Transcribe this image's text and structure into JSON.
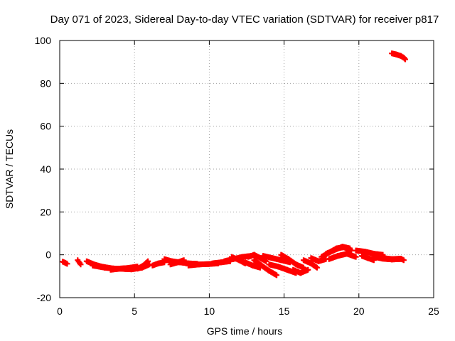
{
  "chart_data": {
    "type": "scatter",
    "title": "Day 071 of 2023, Sidereal Day-to-day VTEC variation (SDTVAR) for receiver p817",
    "xlabel": "GPS time / hours",
    "ylabel": "SDTVAR / TECUs",
    "xlim": [
      0,
      25
    ],
    "ylim": [
      -20,
      100
    ],
    "xticks": [
      0,
      5,
      10,
      15,
      20,
      25
    ],
    "yticks": [
      -20,
      0,
      20,
      40,
      60,
      80,
      100
    ],
    "xtick_labels": [
      "0",
      "5",
      "10",
      "15",
      "20",
      "25"
    ],
    "ytick_labels": [
      "-20",
      "0",
      "20",
      "40",
      "60",
      "80",
      "100"
    ],
    "grid": true,
    "marker": "plus",
    "series": [
      {
        "name": "SDTVAR",
        "color": "#ff0000",
        "tracks": [
          {
            "x": [
              0.2,
              0.5
            ],
            "y": [
              -3.2,
              -4.2
            ]
          },
          {
            "x": [
              1.2,
              1.4
            ],
            "y": [
              -2.5,
              -4.5
            ]
          },
          {
            "x": [
              1.8,
              2.3,
              2.8,
              3.4
            ],
            "y": [
              -3.0,
              -4.5,
              -5.5,
              -6.2
            ]
          },
          {
            "x": [
              2.2,
              3.0,
              3.8,
              4.5,
              5.2
            ],
            "y": [
              -5.0,
              -6.0,
              -6.5,
              -6.2,
              -5.5
            ]
          },
          {
            "x": [
              3.4,
              4.0,
              4.8,
              5.5,
              6.0
            ],
            "y": [
              -7.0,
              -6.5,
              -6.8,
              -6.0,
              -4.5
            ]
          },
          {
            "x": [
              5.2,
              5.6,
              5.9
            ],
            "y": [
              -6.5,
              -5.0,
              -3.0
            ]
          },
          {
            "x": [
              6.2,
              6.6,
              7.0
            ],
            "y": [
              -5.0,
              -4.0,
              -3.5
            ]
          },
          {
            "x": [
              7.0,
              7.5,
              8.0,
              8.6,
              9.2
            ],
            "y": [
              -2.0,
              -3.0,
              -3.5,
              -4.0,
              -4.2
            ]
          },
          {
            "x": [
              7.4,
              7.9,
              8.3
            ],
            "y": [
              -4.5,
              -3.5,
              -2.5
            ]
          },
          {
            "x": [
              8.6,
              9.3,
              10.0,
              10.6
            ],
            "y": [
              -5.0,
              -4.5,
              -4.3,
              -4.0
            ]
          },
          {
            "x": [
              10.2,
              10.8,
              11.4
            ],
            "y": [
              -4.0,
              -3.5,
              -3.0
            ]
          },
          {
            "x": [
              11.0,
              11.6,
              12.2,
              12.8
            ],
            "y": [
              -3.0,
              -2.0,
              -1.0,
              -0.5
            ]
          },
          {
            "x": [
              11.5,
              12.0,
              12.4
            ],
            "y": [
              -1.0,
              -2.5,
              -4.0
            ]
          },
          {
            "x": [
              12.6,
              13.0,
              13.4,
              13.8
            ],
            "y": [
              -1.0,
              0.0,
              -1.5,
              -3.0
            ]
          },
          {
            "x": [
              12.4,
              12.9,
              13.4
            ],
            "y": [
              -3.5,
              -5.0,
              -6.0
            ]
          },
          {
            "x": [
              13.0,
              13.5,
              14.0,
              14.5
            ],
            "y": [
              -2.5,
              -5.0,
              -7.5,
              -9.5
            ]
          },
          {
            "x": [
              13.6,
              14.2,
              14.8,
              15.4
            ],
            "y": [
              -0.5,
              -1.5,
              -2.5,
              -3.5
            ]
          },
          {
            "x": [
              14.0,
              14.6,
              15.2,
              15.8
            ],
            "y": [
              -4.5,
              -5.5,
              -7.0,
              -8.5
            ]
          },
          {
            "x": [
              14.8,
              15.3,
              15.8,
              16.3
            ],
            "y": [
              0.0,
              -2.0,
              -4.5,
              -6.0
            ]
          },
          {
            "x": [
              15.6,
              16.1,
              16.6
            ],
            "y": [
              -7.0,
              -8.5,
              -7.0
            ]
          },
          {
            "x": [
              16.3,
              16.8,
              17.2
            ],
            "y": [
              -2.5,
              -4.0,
              -6.0
            ]
          },
          {
            "x": [
              16.8,
              17.3,
              17.8
            ],
            "y": [
              -1.5,
              -3.0,
              -2.0
            ]
          },
          {
            "x": [
              17.5,
              18.0,
              18.5,
              19.0,
              19.5
            ],
            "y": [
              -1.0,
              1.0,
              3.0,
              3.5,
              2.0
            ]
          },
          {
            "x": [
              18.0,
              18.6,
              19.2,
              19.8
            ],
            "y": [
              -2.0,
              -0.5,
              0.5,
              -1.0
            ]
          },
          {
            "x": [
              17.8,
              18.3,
              18.9,
              19.4
            ],
            "y": [
              0.5,
              2.0,
              3.8,
              3.0
            ]
          },
          {
            "x": [
              19.8,
              20.4,
              21.0,
              21.6
            ],
            "y": [
              2.0,
              1.5,
              0.5,
              0.0
            ]
          },
          {
            "x": [
              20.2,
              20.6,
              21.0
            ],
            "y": [
              -0.5,
              -1.5,
              -2.5
            ]
          },
          {
            "x": [
              21.0,
              21.6,
              22.2,
              22.8
            ],
            "y": [
              -1.0,
              -1.8,
              -2.2,
              -2.0
            ]
          },
          {
            "x": [
              21.6,
              22.2,
              22.8,
              23.0
            ],
            "y": [
              -1.5,
              -2.0,
              -1.8,
              -2.5
            ]
          },
          {
            "x": [
              22.2,
              22.5,
              22.8,
              23.0,
              23.1
            ],
            "y": [
              94.0,
              93.5,
              92.8,
              92.0,
              91.2
            ]
          }
        ]
      }
    ]
  }
}
